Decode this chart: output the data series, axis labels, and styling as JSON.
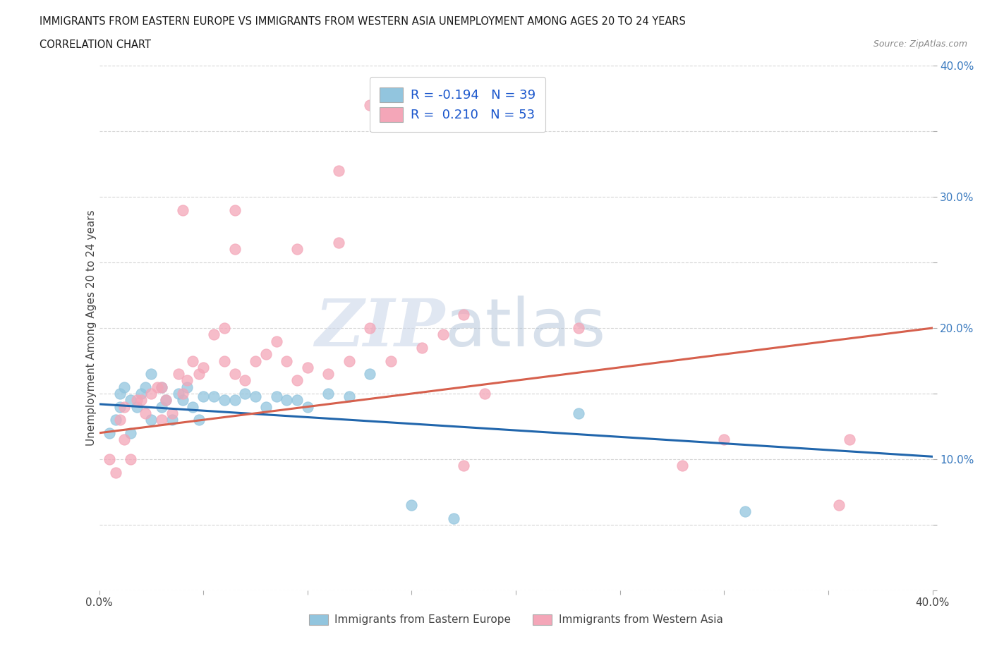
{
  "title_line1": "IMMIGRANTS FROM EASTERN EUROPE VS IMMIGRANTS FROM WESTERN ASIA UNEMPLOYMENT AMONG AGES 20 TO 24 YEARS",
  "title_line2": "CORRELATION CHART",
  "source_text": "Source: ZipAtlas.com",
  "ylabel": "Unemployment Among Ages 20 to 24 years",
  "x_min": 0.0,
  "x_max": 0.4,
  "y_min": 0.0,
  "y_max": 0.4,
  "legend_R1": "R = -0.194",
  "legend_N1": "N = 39",
  "legend_R2": "R =  0.210",
  "legend_N2": "N = 53",
  "color_blue": "#92c5de",
  "color_pink": "#f4a6b8",
  "color_blue_line": "#2166ac",
  "color_pink_line": "#d6604d",
  "watermark_zip": "ZIP",
  "watermark_atlas": "atlas",
  "blue_scatter_x": [
    0.005,
    0.008,
    0.01,
    0.01,
    0.012,
    0.015,
    0.015,
    0.018,
    0.02,
    0.022,
    0.025,
    0.025,
    0.03,
    0.03,
    0.032,
    0.035,
    0.038,
    0.04,
    0.042,
    0.045,
    0.048,
    0.05,
    0.055,
    0.06,
    0.065,
    0.07,
    0.075,
    0.08,
    0.085,
    0.09,
    0.095,
    0.1,
    0.11,
    0.12,
    0.13,
    0.15,
    0.17,
    0.23,
    0.31
  ],
  "blue_scatter_y": [
    0.12,
    0.13,
    0.15,
    0.14,
    0.155,
    0.12,
    0.145,
    0.14,
    0.15,
    0.155,
    0.165,
    0.13,
    0.155,
    0.14,
    0.145,
    0.13,
    0.15,
    0.145,
    0.155,
    0.14,
    0.13,
    0.148,
    0.148,
    0.145,
    0.145,
    0.15,
    0.148,
    0.14,
    0.148,
    0.145,
    0.145,
    0.14,
    0.15,
    0.148,
    0.165,
    0.065,
    0.055,
    0.135,
    0.06
  ],
  "pink_scatter_x": [
    0.005,
    0.008,
    0.01,
    0.012,
    0.012,
    0.015,
    0.018,
    0.02,
    0.022,
    0.025,
    0.028,
    0.03,
    0.03,
    0.032,
    0.035,
    0.038,
    0.04,
    0.042,
    0.045,
    0.048,
    0.05,
    0.055,
    0.06,
    0.06,
    0.065,
    0.07,
    0.075,
    0.08,
    0.085,
    0.09,
    0.095,
    0.1,
    0.11,
    0.12,
    0.13,
    0.14,
    0.155,
    0.165,
    0.175,
    0.185,
    0.04,
    0.065,
    0.095,
    0.115,
    0.13,
    0.175,
    0.28,
    0.3,
    0.355,
    0.36,
    0.065,
    0.115,
    0.23
  ],
  "pink_scatter_y": [
    0.1,
    0.09,
    0.13,
    0.14,
    0.115,
    0.1,
    0.145,
    0.145,
    0.135,
    0.15,
    0.155,
    0.155,
    0.13,
    0.145,
    0.135,
    0.165,
    0.15,
    0.16,
    0.175,
    0.165,
    0.17,
    0.195,
    0.175,
    0.2,
    0.165,
    0.16,
    0.175,
    0.18,
    0.19,
    0.175,
    0.16,
    0.17,
    0.165,
    0.175,
    0.2,
    0.175,
    0.185,
    0.195,
    0.21,
    0.15,
    0.29,
    0.29,
    0.26,
    0.32,
    0.37,
    0.095,
    0.095,
    0.115,
    0.065,
    0.115,
    0.26,
    0.265,
    0.2
  ],
  "blue_trend_x": [
    0.0,
    0.4
  ],
  "blue_trend_y": [
    0.142,
    0.102
  ],
  "pink_trend_x": [
    0.0,
    0.4
  ],
  "pink_trend_y": [
    0.12,
    0.2
  ],
  "grid_color": "#cccccc",
  "background_color": "#ffffff",
  "legend1_label": "R = -0.194   N = 39",
  "legend2_label": "R =  0.210   N = 53",
  "bottom_label1": "Immigrants from Eastern Europe",
  "bottom_label2": "Immigrants from Western Asia"
}
